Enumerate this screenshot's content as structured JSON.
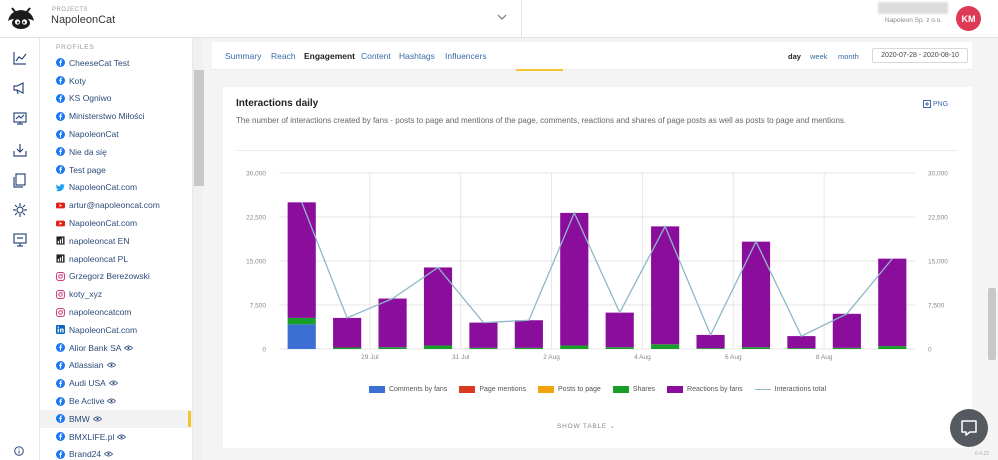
{
  "header": {
    "project_label": "PROJECTS",
    "project_name": "NapoleonCat",
    "account_name": "Napoleon Sp. z o.o.",
    "avatar_initials": "KM",
    "avatar_color": "#dd3a55"
  },
  "rail": {
    "icons": [
      "analytics-icon",
      "megaphone-icon",
      "publisher-icon",
      "inbox-icon",
      "reports-icon",
      "automation-icon",
      "monitor-icon"
    ],
    "info_icon": "info-icon"
  },
  "profiles": {
    "label": "PROFILES",
    "items": [
      {
        "label": "CheeseCat Test",
        "network": "facebook",
        "watch": false,
        "active": false
      },
      {
        "label": "Koty",
        "network": "facebook",
        "watch": false,
        "active": false
      },
      {
        "label": "KS Ogniwo",
        "network": "facebook",
        "watch": false,
        "active": false
      },
      {
        "label": "Ministerstwo Miłości",
        "network": "facebook",
        "watch": false,
        "active": false
      },
      {
        "label": "NapoleonCat",
        "network": "facebook",
        "watch": false,
        "active": false
      },
      {
        "label": "Nie da się",
        "network": "facebook",
        "watch": false,
        "active": false
      },
      {
        "label": "Test page",
        "network": "facebook",
        "watch": false,
        "active": false
      },
      {
        "label": "NapoleonCat.com",
        "network": "twitter",
        "watch": false,
        "active": false
      },
      {
        "label": "artur@napoleoncat.com",
        "network": "youtube",
        "watch": false,
        "active": false
      },
      {
        "label": "NapoleonCat.com",
        "network": "youtube",
        "watch": false,
        "active": false
      },
      {
        "label": "napoleoncat EN",
        "network": "analytics",
        "watch": false,
        "active": false
      },
      {
        "label": "napoleoncat PL",
        "network": "analytics",
        "watch": false,
        "active": false
      },
      {
        "label": "Grzegorz Berezowski",
        "network": "instagram",
        "watch": false,
        "active": false
      },
      {
        "label": "koty_xyz",
        "network": "instagram",
        "watch": false,
        "active": false
      },
      {
        "label": "napoleoncatcom",
        "network": "instagram",
        "watch": false,
        "active": false
      },
      {
        "label": "NapoleonCat.com",
        "network": "linkedin",
        "watch": false,
        "active": false
      },
      {
        "label": "Alior Bank SA",
        "network": "facebook",
        "watch": true,
        "active": false
      },
      {
        "label": "Atlassian",
        "network": "facebook",
        "watch": true,
        "active": false
      },
      {
        "label": "Audi USA",
        "network": "facebook",
        "watch": true,
        "active": false
      },
      {
        "label": "Be Active",
        "network": "facebook",
        "watch": true,
        "active": false
      },
      {
        "label": "BMW",
        "network": "facebook",
        "watch": true,
        "active": true
      },
      {
        "label": "BMXLIFE.pl",
        "network": "facebook",
        "watch": true,
        "active": false
      },
      {
        "label": "Brand24",
        "network": "facebook",
        "watch": true,
        "active": false
      }
    ]
  },
  "tabs": {
    "items": [
      {
        "label": "Summary",
        "active": false
      },
      {
        "label": "Reach",
        "active": false
      },
      {
        "label": "Engagement",
        "active": true
      },
      {
        "label": "Content",
        "active": false
      },
      {
        "label": "Hashtags",
        "active": false
      },
      {
        "label": "Influencers",
        "active": false
      }
    ],
    "granularity": [
      {
        "label": "day",
        "active": true
      },
      {
        "label": "week",
        "active": false
      },
      {
        "label": "month",
        "active": false
      }
    ],
    "date_range": "2020-07-28 - 2020-08-10"
  },
  "card": {
    "title": "Interactions daily",
    "description": "The number of interactions created by fans - posts to page and mentions of the page, comments, reactions and shares of page posts as well as posts to page and mentions.",
    "png_label": "PNG",
    "show_table_label": "SHOW TABLE"
  },
  "chart_data": {
    "type": "bar",
    "stacked": true,
    "dates": [
      "28 Jul",
      "29 Jul",
      "30 Jul",
      "31 Jul",
      "1 Aug",
      "2 Aug",
      "3 Aug",
      "4 Aug",
      "5 Aug",
      "6 Aug",
      "7 Aug",
      "8 Aug",
      "9 Aug",
      "10 Aug"
    ],
    "x_tick_labels": [
      "29 Jul",
      "31 Jul",
      "2 Aug",
      "4 Aug",
      "6 Aug",
      "8 Aug"
    ],
    "y_ticks": [
      "0",
      "7,500",
      "15,000",
      "22,500",
      "30,000"
    ],
    "ylim": [
      0,
      30000
    ],
    "grid": true,
    "legend_position": "bottom",
    "series": [
      {
        "name": "Comments by fans",
        "color": "#3b6fd4",
        "values": [
          4200,
          0,
          0,
          0,
          0,
          0,
          0,
          0,
          0,
          0,
          0,
          0,
          0,
          0
        ]
      },
      {
        "name": "Page mentions",
        "color": "#d93a1f",
        "values": [
          0,
          0,
          0,
          0,
          0,
          0,
          0,
          0,
          0,
          0,
          0,
          0,
          0,
          0
        ]
      },
      {
        "name": "Posts to page",
        "color": "#f2a20f",
        "values": [
          0,
          0,
          0,
          0,
          0,
          0,
          0,
          0,
          0,
          0,
          0,
          0,
          0,
          0
        ]
      },
      {
        "name": "Shares",
        "color": "#1a9e2a",
        "values": [
          1100,
          250,
          300,
          600,
          200,
          200,
          600,
          300,
          800,
          150,
          300,
          150,
          200,
          500
        ]
      },
      {
        "name": "Reactions by fans",
        "color": "#8b0d9b",
        "values": [
          19700,
          5050,
          8300,
          13300,
          4300,
          4700,
          22600,
          5900,
          20100,
          2250,
          18000,
          2050,
          5800,
          14900
        ]
      },
      {
        "name": "Interactions total",
        "type": "line",
        "color": "#8fb8c9",
        "values": [
          25000,
          5300,
          8600,
          13900,
          4500,
          4900,
          23200,
          6200,
          20900,
          2400,
          18300,
          2200,
          6000,
          15400
        ]
      }
    ]
  },
  "misc": {
    "chat_icon": "chat-icon",
    "version": "6.4.23"
  }
}
